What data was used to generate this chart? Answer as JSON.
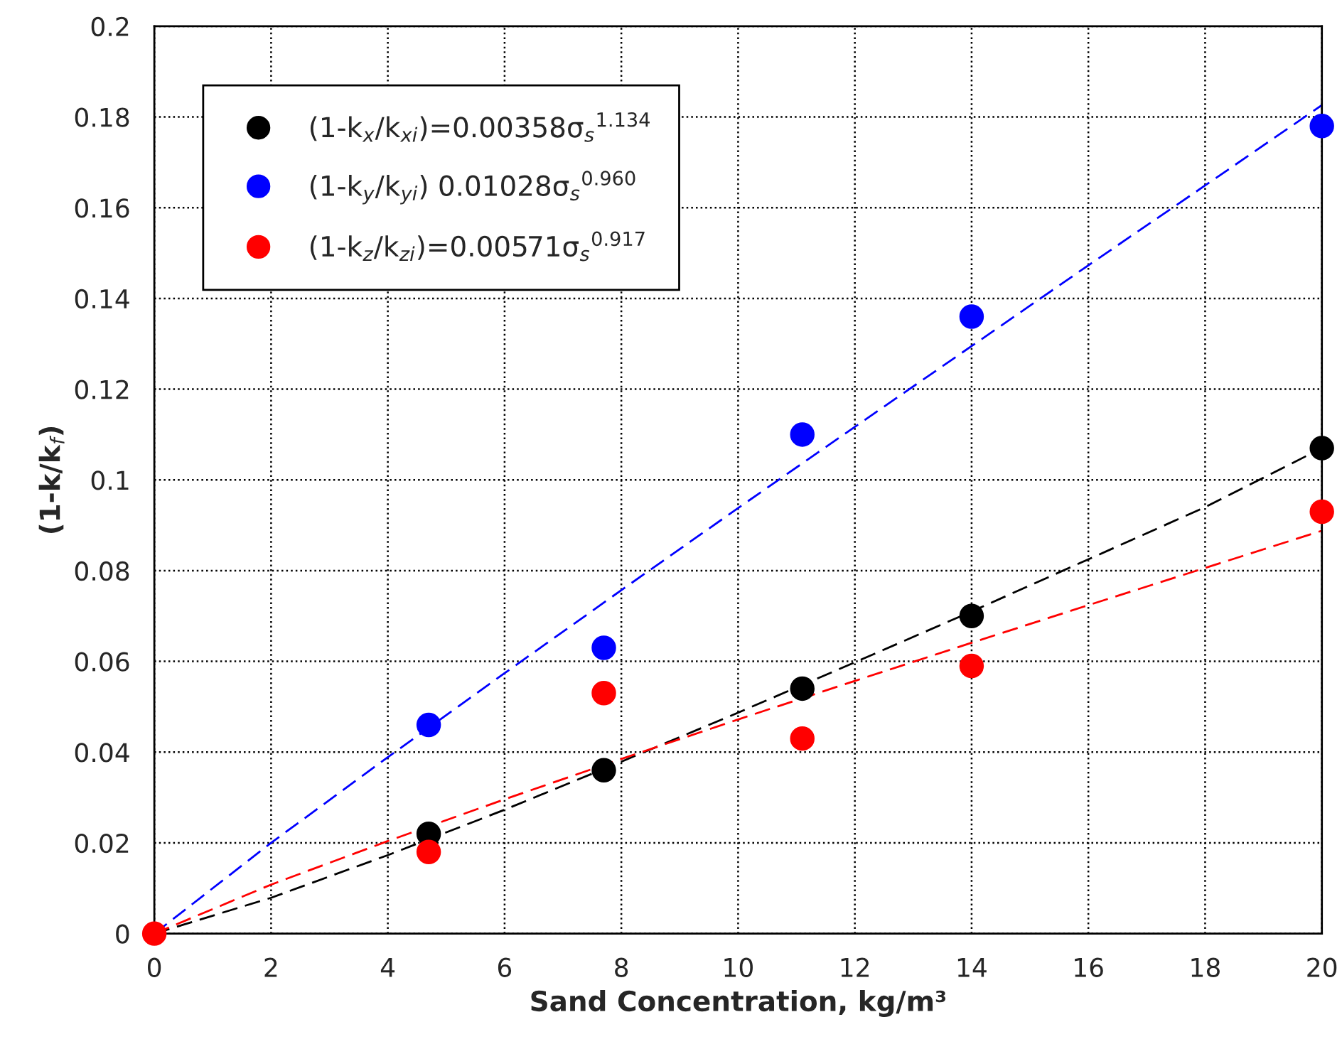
{
  "chart_data": {
    "type": "scatter",
    "xlabel": "Sand Concentration, kg/m³",
    "ylabel": "(1-k/k$_{f}$)",
    "x": [
      0,
      4.7,
      7.7,
      11.1,
      14.0,
      20
    ],
    "series": [
      {
        "name": "(1-k$_{x}$/k$_{xi}$)=0.00358σ$_{s}$$^{1.134}$",
        "color": "#000000",
        "values": [
          null,
          0.022,
          0.036,
          0.054,
          0.07,
          0.107
        ]
      },
      {
        "name": "(1-k$_{y}$/k$_{yi}$) 0.01028σ$_{s}$$^{0.960}$",
        "color": "#0000ff",
        "values": [
          null,
          0.046,
          0.063,
          0.11,
          0.136,
          0.178
        ]
      },
      {
        "name": "(1-k$_{z}$/k$_{zi}$)=0.00571σ$_{s}$$^{0.917}$",
        "color": "#ff0000",
        "values": [
          0,
          0.018,
          0.053,
          0.043,
          0.059,
          0.093
        ]
      },
      {
        "type": "line",
        "line_style": "dashed",
        "marker": "none",
        "color": "#000000",
        "x": [
          0,
          2,
          4,
          6,
          8,
          10,
          12,
          14,
          16,
          18,
          20
        ],
        "values": [
          0,
          0.0079,
          0.0173,
          0.0273,
          0.0379,
          0.0487,
          0.0598,
          0.071,
          0.0825,
          0.094,
          0.107
        ]
      },
      {
        "type": "line",
        "line_style": "dashed",
        "marker": "none",
        "color": "#0000ff",
        "x": [
          0,
          2,
          4,
          6,
          8,
          10,
          12,
          14,
          16,
          18,
          20
        ],
        "values": [
          0,
          0.02,
          0.0389,
          0.0574,
          0.0757,
          0.0938,
          0.1117,
          0.1295,
          0.1473,
          0.1649,
          0.1826
        ]
      },
      {
        "type": "line",
        "line_style": "dashed",
        "marker": "none",
        "color": "#ff0000",
        "x": [
          0,
          2,
          4,
          6,
          8,
          10,
          12,
          14,
          16,
          18,
          20
        ],
        "values": [
          0,
          0.0108,
          0.0204,
          0.0296,
          0.0385,
          0.0472,
          0.0557,
          0.0641,
          0.0724,
          0.0806,
          0.0888
        ]
      }
    ],
    "marker": "circle",
    "xlim": [
      0,
      20
    ],
    "xticks": [
      0,
      2,
      4,
      6,
      8,
      10,
      12,
      14,
      16,
      18,
      20
    ],
    "ylim": [
      0,
      0.2
    ],
    "yticks": [
      0,
      0.02,
      0.04,
      0.06,
      0.08,
      0.1,
      0.12,
      0.14,
      0.16,
      0.18,
      0.2
    ],
    "grid": true,
    "legend": "top left"
  }
}
